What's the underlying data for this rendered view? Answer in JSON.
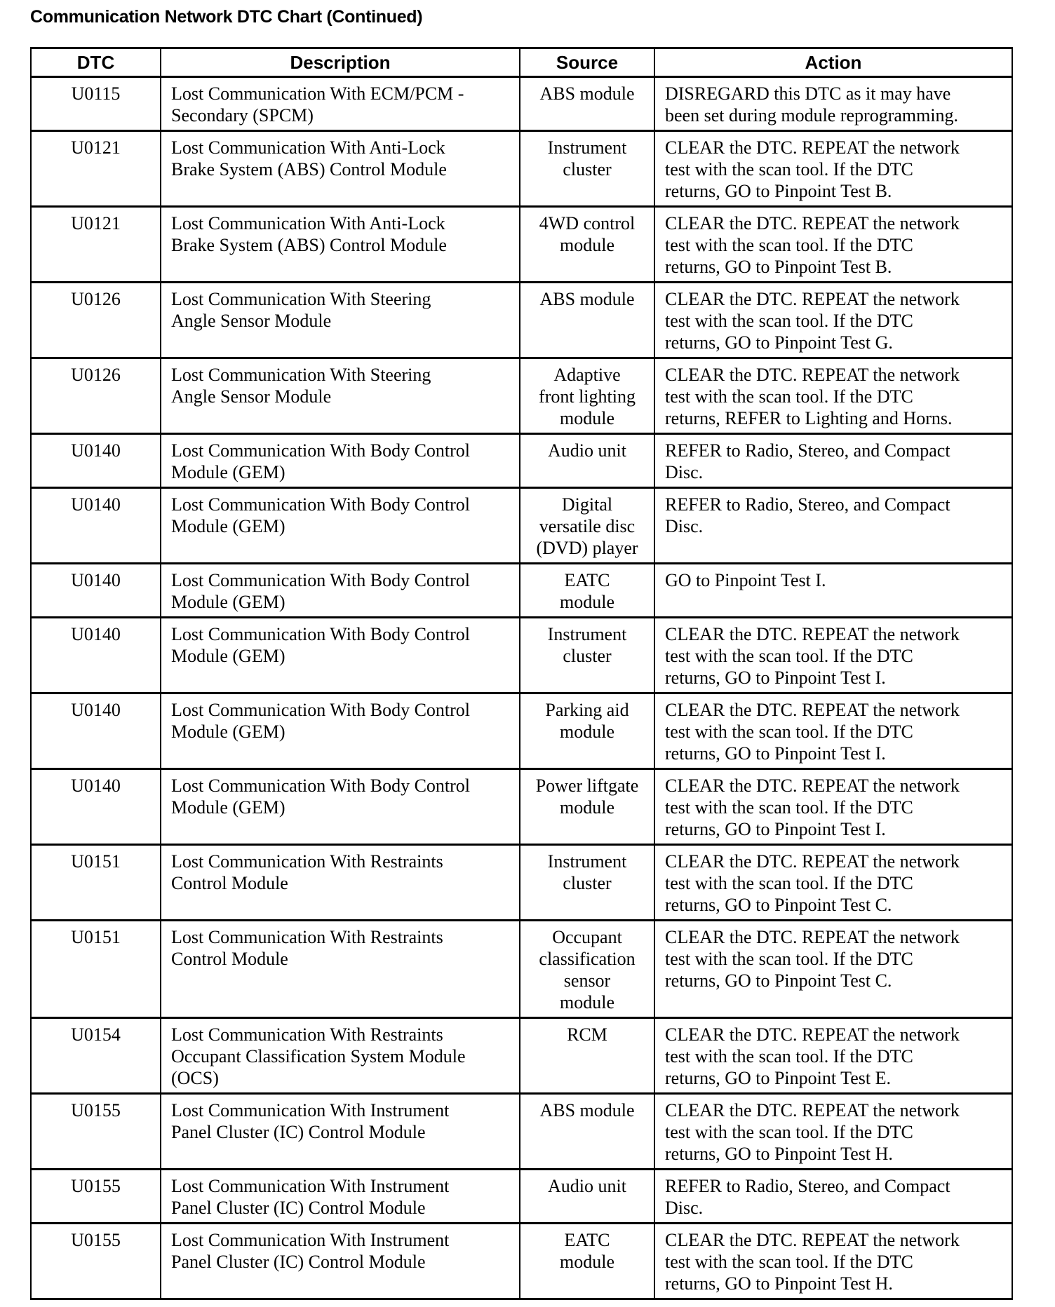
{
  "title": "Communication Network DTC Chart (Continued)",
  "columns": [
    "DTC",
    "Description",
    "Source",
    "Action"
  ],
  "rows": [
    {
      "dtc": "U0115",
      "description": "Lost Communication With ECM/PCM -\nSecondary (SPCM)",
      "source": "ABS module",
      "action": "DISREGARD this DTC as it may have\nbeen set during module reprogramming."
    },
    {
      "dtc": "U0121",
      "description": "Lost Communication With Anti-Lock\nBrake System (ABS) Control Module",
      "source": "Instrument\ncluster",
      "action": "CLEAR the DTC. REPEAT the network\ntest with the scan tool. If the DTC\nreturns, GO to Pinpoint Test B."
    },
    {
      "dtc": "U0121",
      "description": "Lost Communication With Anti-Lock\nBrake System (ABS) Control Module",
      "source": "4WD control\nmodule",
      "action": "CLEAR the DTC. REPEAT the network\ntest with the scan tool. If the DTC\nreturns, GO to Pinpoint Test B."
    },
    {
      "dtc": "U0126",
      "description": "Lost Communication With Steering\nAngle Sensor Module",
      "source": "ABS module",
      "action": "CLEAR the DTC. REPEAT the network\ntest with the scan tool. If the DTC\nreturns, GO to Pinpoint Test G."
    },
    {
      "dtc": "U0126",
      "description": "Lost Communication With Steering\nAngle Sensor Module",
      "source": "Adaptive\nfront lighting\nmodule",
      "action": "CLEAR the DTC. REPEAT the network\ntest with the scan tool. If the DTC\nreturns, REFER to Lighting and Horns."
    },
    {
      "dtc": "U0140",
      "description": "Lost Communication With Body Control\nModule (GEM)",
      "source": "Audio unit",
      "action": "REFER to Radio, Stereo, and Compact\nDisc."
    },
    {
      "dtc": "U0140",
      "description": "Lost Communication With Body Control\nModule (GEM)",
      "source": "Digital\nversatile disc\n(DVD) player",
      "action": "REFER to Radio, Stereo, and Compact\nDisc."
    },
    {
      "dtc": "U0140",
      "description": "Lost Communication With Body Control\nModule (GEM)",
      "source": "EATC\nmodule",
      "action": "GO to Pinpoint Test I."
    },
    {
      "dtc": "U0140",
      "description": "Lost Communication With Body Control\nModule (GEM)",
      "source": "Instrument\ncluster",
      "action": "CLEAR the DTC. REPEAT the network\ntest with the scan tool. If the DTC\nreturns, GO to Pinpoint Test I."
    },
    {
      "dtc": "U0140",
      "description": "Lost Communication With Body Control\nModule (GEM)",
      "source": "Parking aid\nmodule",
      "action": "CLEAR the DTC. REPEAT the network\ntest with the scan tool. If the DTC\nreturns, GO to Pinpoint Test I."
    },
    {
      "dtc": "U0140",
      "description": "Lost Communication With Body Control\nModule (GEM)",
      "source": "Power liftgate\nmodule",
      "action": "CLEAR the DTC. REPEAT the network\ntest with the scan tool. If the DTC\nreturns, GO to Pinpoint Test I."
    },
    {
      "dtc": "U0151",
      "description": "Lost Communication With Restraints\nControl Module",
      "source": "Instrument\ncluster",
      "action": "CLEAR the DTC. REPEAT the network\ntest with the scan tool. If the DTC\nreturns, GO to Pinpoint Test C."
    },
    {
      "dtc": "U0151",
      "description": "Lost Communication With Restraints\nControl Module",
      "source": "Occupant\nclassification\nsensor\nmodule",
      "action": "CLEAR the DTC. REPEAT the network\ntest with the scan tool. If the DTC\nreturns, GO to Pinpoint Test C."
    },
    {
      "dtc": "U0154",
      "description": "Lost Communication With Restraints\nOccupant Classification System Module\n(OCS)",
      "source": "RCM",
      "action": "CLEAR the DTC. REPEAT the network\ntest with the scan tool. If the DTC\nreturns, GO to Pinpoint Test E."
    },
    {
      "dtc": "U0155",
      "description": "Lost Communication With Instrument\nPanel Cluster (IC) Control Module",
      "source": "ABS module",
      "action": "CLEAR the DTC. REPEAT the network\ntest with the scan tool. If the DTC\nreturns, GO to Pinpoint Test H."
    },
    {
      "dtc": "U0155",
      "description": "Lost Communication With Instrument\nPanel Cluster (IC) Control Module",
      "source": "Audio unit",
      "action": "REFER to Radio, Stereo, and Compact\nDisc."
    },
    {
      "dtc": "U0155",
      "description": "Lost Communication With Instrument\nPanel Cluster (IC) Control Module",
      "source": "EATC\nmodule",
      "action": "CLEAR the DTC. REPEAT the network\ntest with the scan tool. If the DTC\nreturns, GO to Pinpoint Test H."
    }
  ]
}
